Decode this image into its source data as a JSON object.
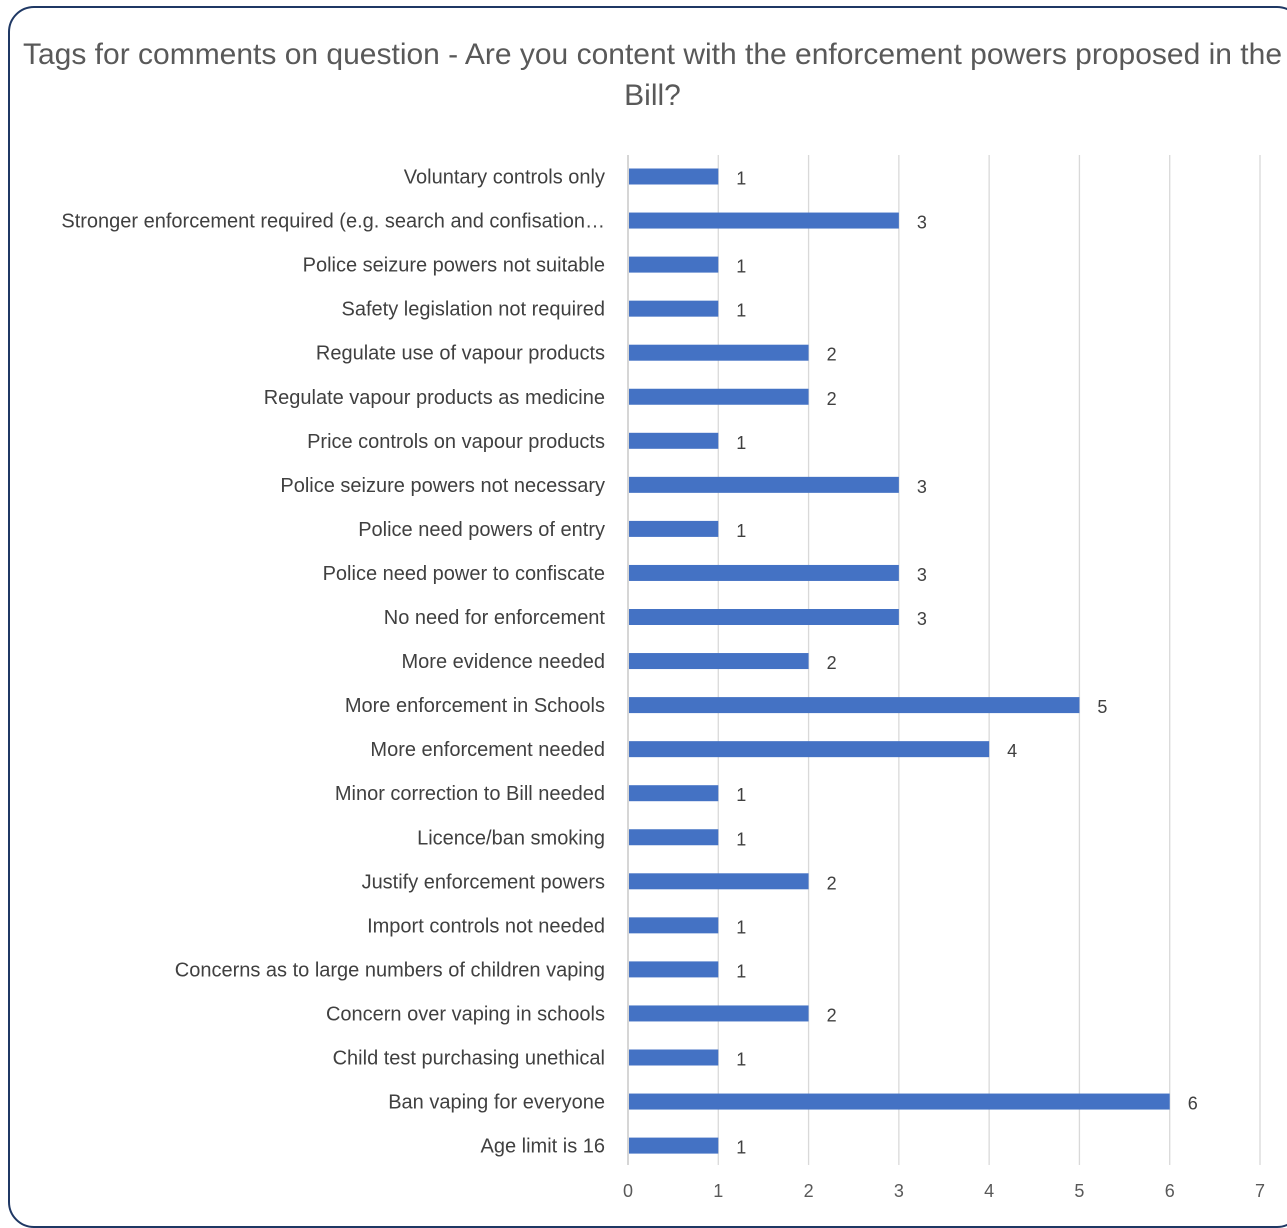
{
  "chart_data": {
    "type": "bar",
    "orientation": "horizontal",
    "title": "Tags for comments on question - Are you content with the enforcement powers proposed in the Bill?",
    "categories": [
      "Voluntary controls only",
      "Stronger enforcement required (e.g. search and confisation…",
      "Police seizure powers not suitable",
      "Safety legislation not required",
      "Regulate use of vapour products",
      "Regulate vapour products as medicine",
      "Price controls on vapour products",
      "Police seizure powers not necessary",
      "Police need powers of entry",
      "Police need power to confiscate",
      "No need for enforcement",
      "More evidence needed",
      "More enforcement in Schools",
      "More enforcement needed",
      "Minor correction to Bill needed",
      "Licence/ban smoking",
      "Justify enforcement powers",
      "Import controls not needed",
      "Concerns as to large numbers of children vaping",
      "Concern over vaping in schools",
      "Child test purchasing unethical",
      "Ban vaping for everyone",
      "Age limit is 16"
    ],
    "values": [
      1,
      3,
      1,
      1,
      2,
      2,
      1,
      3,
      1,
      3,
      3,
      2,
      5,
      4,
      1,
      1,
      2,
      1,
      1,
      2,
      1,
      6,
      1
    ],
    "xlim": [
      0,
      7
    ],
    "xticks": [
      "0",
      "1",
      "2",
      "3",
      "4",
      "5",
      "6",
      "7"
    ],
    "xlabel": "",
    "ylabel": "",
    "grid": "vertical",
    "data_labels": true,
    "legend": "none",
    "bar_color": "#4472c4",
    "grid_color": "#d9d9d9",
    "text_color": "#404040",
    "frame_color": "#1f3864"
  }
}
